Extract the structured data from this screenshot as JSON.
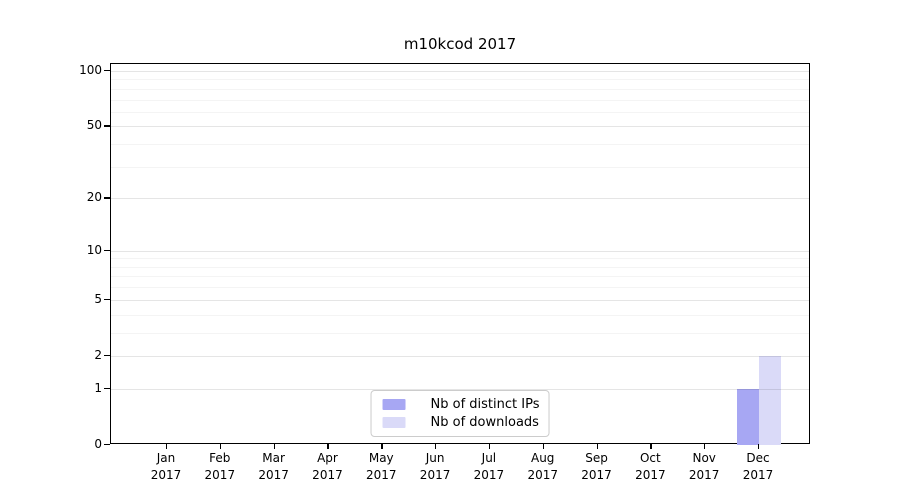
{
  "chart_data": {
    "type": "bar",
    "title": "m10kcod 2017",
    "categories": [
      {
        "label": "Jan",
        "sublabel": "2017"
      },
      {
        "label": "Feb",
        "sublabel": "2017"
      },
      {
        "label": "Mar",
        "sublabel": "2017"
      },
      {
        "label": "Apr",
        "sublabel": "2017"
      },
      {
        "label": "May",
        "sublabel": "2017"
      },
      {
        "label": "Jun",
        "sublabel": "2017"
      },
      {
        "label": "Jul",
        "sublabel": "2017"
      },
      {
        "label": "Aug",
        "sublabel": "2017"
      },
      {
        "label": "Sep",
        "sublabel": "2017"
      },
      {
        "label": "Oct",
        "sublabel": "2017"
      },
      {
        "label": "Nov",
        "sublabel": "2017"
      },
      {
        "label": "Dec",
        "sublabel": "2017"
      }
    ],
    "series": [
      {
        "name": "Nb of distinct IPs",
        "color": "#a7a7f3",
        "values": [
          0,
          0,
          0,
          0,
          0,
          0,
          0,
          0,
          0,
          0,
          0,
          1
        ]
      },
      {
        "name": "Nb of downloads",
        "color": "#dadaf8",
        "values": [
          0,
          0,
          0,
          0,
          0,
          0,
          0,
          0,
          0,
          0,
          0,
          2
        ]
      }
    ],
    "y_axis": {
      "scale": "log1p",
      "ticks": [
        0,
        1,
        2,
        5,
        10,
        20,
        50,
        100
      ],
      "minor_ticks": [
        3,
        4,
        6,
        7,
        8,
        9,
        30,
        40,
        60,
        70,
        80,
        90
      ],
      "range": [
        0,
        112
      ]
    },
    "x_axis": {
      "label": ""
    },
    "grid": true,
    "legend_position": "lower center"
  },
  "colors": {
    "background": "#ffffff",
    "spine": "#000000",
    "grid_major": "rgba(0,0,0,0.10)",
    "grid_minor": "rgba(0,0,0,0.045)",
    "legend_border": "#cccccc",
    "bar_distinct_ips": "#a7a7f3",
    "bar_downloads": "#dadaf8"
  }
}
